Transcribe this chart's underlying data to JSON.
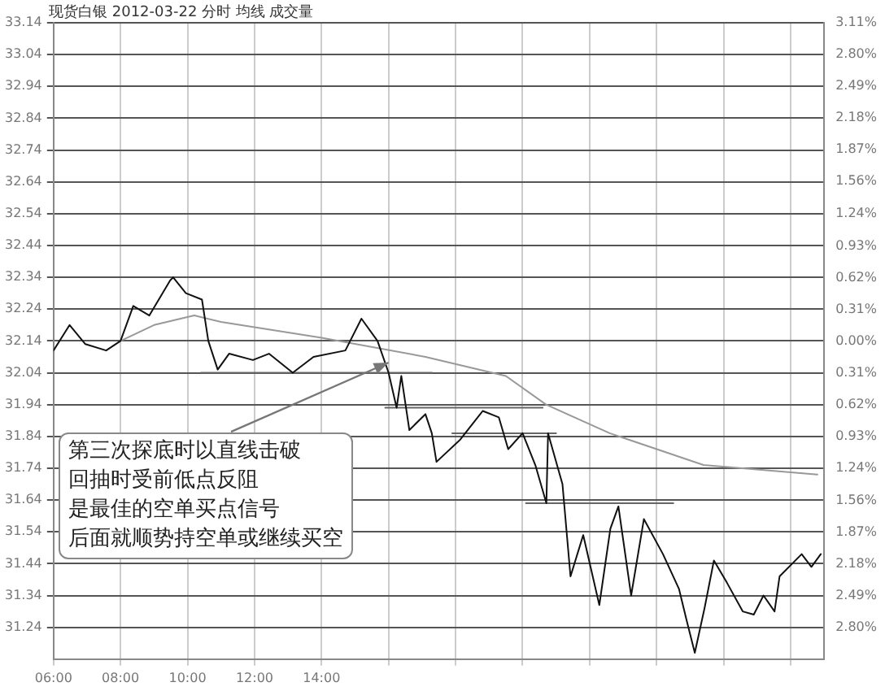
{
  "chart_data": {
    "type": "line",
    "title": "现货白银 2012-03-22 分时 均线 成交量",
    "annotations": [
      {
        "text": "第三次探底时以直线击破",
        "x": 16.0,
        "y": 32.07
      },
      "回抽时受前低点反阻",
      "是最佳的空单买点信号",
      "后面就顺势持空单或继续买空"
    ],
    "xlim": [
      6,
      29
    ],
    "xticks": [
      {
        "value": 6,
        "label": "06:00"
      },
      {
        "value": 8,
        "label": "08:00"
      },
      {
        "value": 10,
        "label": "10:00"
      },
      {
        "value": 12,
        "label": "12:00"
      },
      {
        "value": 14,
        "label": "14:00"
      },
      {
        "value": 16,
        "label": null
      },
      {
        "value": 18,
        "label": null
      },
      {
        "value": 20,
        "label": null
      },
      {
        "value": 22,
        "label": null
      },
      {
        "value": 24,
        "label": null
      },
      {
        "value": 26,
        "label": null
      },
      {
        "value": 28,
        "label": null
      }
    ],
    "ylim": [
      31.14,
      33.14
    ],
    "yticks": [
      31.24,
      31.34,
      31.44,
      31.54,
      31.64,
      31.74,
      31.84,
      31.94,
      32.04,
      32.14,
      32.24,
      32.34,
      32.44,
      32.54,
      32.64,
      32.74,
      32.84,
      32.94,
      33.04,
      33.14
    ],
    "y2lim": [
      -3.11,
      3.11
    ],
    "y2ticks": [
      {
        "value": -2.8,
        "label": "2.80%"
      },
      {
        "value": -2.49,
        "label": "2.49%"
      },
      {
        "value": -2.18,
        "label": "2.18%"
      },
      {
        "value": -1.87,
        "label": "1.87%"
      },
      {
        "value": -1.56,
        "label": "1.56%"
      },
      {
        "value": -1.24,
        "label": "1.24%"
      },
      {
        "value": -0.93,
        "label": "0.93%"
      },
      {
        "value": -0.62,
        "label": "0.62%"
      },
      {
        "value": -0.31,
        "label": "0.31%"
      },
      {
        "value": 0,
        "label": "0.00%"
      },
      {
        "value": 0.31,
        "label": "0.31%"
      },
      {
        "value": 0.62,
        "label": "0.62%"
      },
      {
        "value": 0.93,
        "label": "0.93%"
      },
      {
        "value": 1.24,
        "label": "1.24%"
      },
      {
        "value": 1.56,
        "label": "1.56%"
      },
      {
        "value": 1.87,
        "label": "1.87%"
      },
      {
        "value": 2.18,
        "label": "2.18%"
      },
      {
        "value": 2.49,
        "label": "2.49%"
      },
      {
        "value": 2.8,
        "label": "2.80%"
      },
      {
        "value": 3.11,
        "label": "3.11%"
      }
    ],
    "grid": true,
    "legend": false,
    "marker": "none",
    "line_style": "solid",
    "series": [
      {
        "type": "line",
        "color": "#111111",
        "x": [
          6.0,
          6.48,
          6.95,
          7.57,
          8.0,
          8.38,
          8.86,
          9.48,
          9.57,
          9.95,
          10.43,
          10.62,
          10.9,
          11.24,
          11.95,
          12.43,
          13.14,
          13.76,
          14.71,
          15.19,
          15.67,
          16.0,
          16.24,
          16.38,
          16.62,
          17.1,
          17.29,
          17.43,
          18.14,
          18.81,
          19.29,
          19.57,
          20.0,
          20.38,
          20.71,
          20.76,
          21.19,
          21.43,
          21.81,
          22.29,
          22.62,
          22.86,
          23.24,
          23.62,
          24.19,
          24.67,
          24.9,
          25.14,
          25.43,
          25.71,
          26.1,
          26.57,
          26.9,
          27.19,
          27.52,
          27.67,
          28.33,
          28.62,
          28.9
        ],
        "values": [
          32.11,
          32.19,
          32.13,
          32.11,
          32.14,
          32.25,
          32.22,
          32.33,
          32.34,
          32.29,
          32.27,
          32.14,
          32.05,
          32.1,
          32.08,
          32.1,
          32.04,
          32.09,
          32.11,
          32.21,
          32.14,
          32.04,
          31.93,
          32.03,
          31.86,
          31.91,
          31.85,
          31.76,
          31.83,
          31.92,
          31.9,
          31.8,
          31.85,
          31.75,
          31.63,
          31.85,
          31.69,
          31.4,
          31.53,
          31.31,
          31.55,
          31.62,
          31.34,
          31.58,
          31.47,
          31.36,
          31.26,
          31.16,
          31.3,
          31.45,
          31.38,
          31.29,
          31.28,
          31.34,
          31.29,
          31.4,
          31.47,
          31.43,
          31.47
        ]
      },
      {
        "type": "line",
        "color": "#999999",
        "x": [
          8.0,
          9.0,
          10.2,
          11.0,
          14.0,
          17.1,
          19.5,
          20.7,
          22.6,
          25.4,
          28.8
        ],
        "values": [
          32.14,
          32.19,
          32.22,
          32.2,
          32.15,
          32.09,
          32.03,
          31.94,
          31.85,
          31.75,
          31.72
        ]
      },
      {
        "type": "line",
        "color": "#666666",
        "x": [
          10.4,
          17.3
        ],
        "values": [
          32.04,
          32.04
        ]
      },
      {
        "type": "line",
        "color": "#666666",
        "x": [
          15.9,
          20.6
        ],
        "values": [
          31.93,
          31.93
        ]
      },
      {
        "type": "line",
        "color": "#666666",
        "x": [
          17.9,
          21.0
        ],
        "values": [
          31.85,
          31.85
        ]
      },
      {
        "type": "line",
        "color": "#666666",
        "x": [
          20.1,
          24.5
        ],
        "values": [
          31.63,
          31.63
        ]
      }
    ]
  }
}
